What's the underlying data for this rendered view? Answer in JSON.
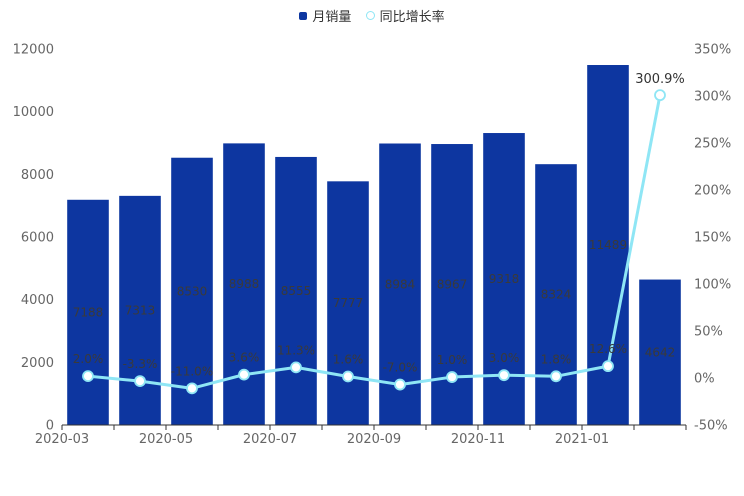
{
  "colors": {
    "bar": "#0d36a0",
    "line": "#8fe6f5",
    "point_fill": "#ffffff",
    "axis": "#333333",
    "tick_text": "#666666"
  },
  "legend": {
    "bar_series": "月销量",
    "line_series": "同比增长率"
  },
  "chart_data": {
    "type": "bar",
    "categories": [
      "2020-03",
      "2020-04",
      "2020-05",
      "2020-06",
      "2020-07",
      "2020-08",
      "2020-09",
      "2020-10",
      "2020-11",
      "2020-12",
      "2021-01",
      "2021-02"
    ],
    "x_tick_labels": [
      "2020-03",
      "2020-05",
      "2020-07",
      "2020-09",
      "2020-11",
      "2021-01"
    ],
    "y_left": {
      "ylim": [
        0,
        12000
      ],
      "ticks": [
        0,
        2000,
        4000,
        6000,
        8000,
        10000,
        12000
      ]
    },
    "y_right": {
      "ylim": [
        -50,
        350
      ],
      "ticks": [
        "-50%",
        "0%",
        "50%",
        "100%",
        "150%",
        "200%",
        "250%",
        "300%",
        "350%"
      ]
    },
    "series": [
      {
        "name": "月销量",
        "type": "bar",
        "axis": "left",
        "values": [
          7188,
          7313,
          8530,
          8988,
          8555,
          7777,
          8984,
          8967,
          9318,
          8324,
          11489,
          4642
        ],
        "labels": [
          "7188",
          "7313",
          "8530",
          "8988",
          "8555",
          "7777",
          "8984",
          "8967",
          "9318",
          "8324",
          "11489",
          "4642"
        ]
      },
      {
        "name": "同比增长率",
        "type": "line",
        "axis": "right",
        "values": [
          2.0,
          -3.3,
          -11.0,
          3.6,
          11.3,
          1.6,
          -7.0,
          1.0,
          3.0,
          1.8,
          12.6,
          300.9
        ],
        "labels": [
          "2.0%",
          "-3.3%",
          "-11.0%",
          "3.6%",
          "11.3%",
          "1.6%",
          "-7.0%",
          "1.0%",
          "3.0%",
          "1.8%",
          "12.6%",
          "300.9%"
        ]
      }
    ]
  }
}
